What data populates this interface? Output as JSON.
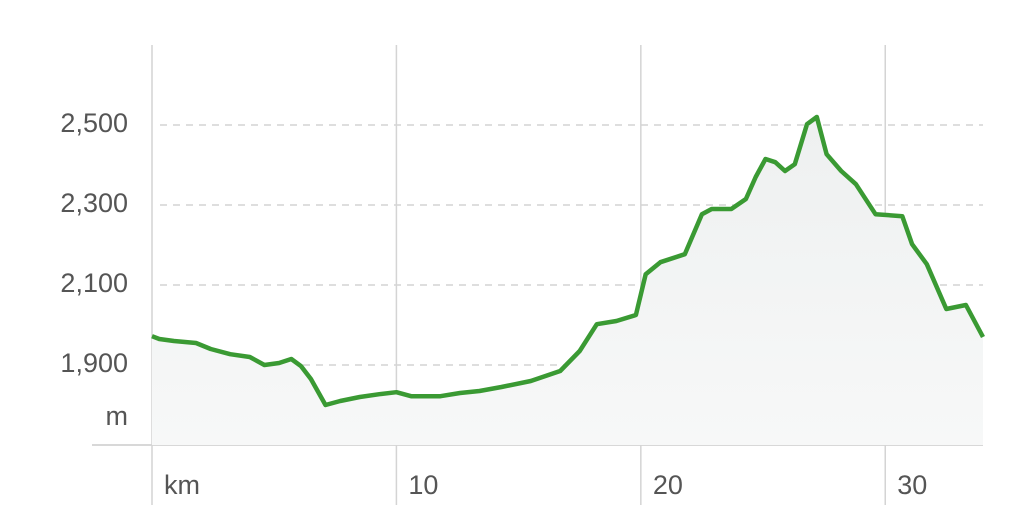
{
  "chart_data": {
    "type": "area-line",
    "ylabel": "m",
    "x": [
      0,
      0.3,
      0.9,
      1.8,
      2.4,
      3.2,
      4.0,
      4.6,
      5.2,
      5.7,
      6.1,
      6.5,
      7.1,
      7.7,
      8.5,
      9.3,
      10,
      10.6,
      11.8,
      12.6,
      13.4,
      14.3,
      15.5,
      16.7,
      17.5,
      18.2,
      19.0,
      19.8,
      20.2,
      20.8,
      21.8,
      22.5,
      22.9,
      23.7,
      24.3,
      24.7,
      25.1,
      25.5,
      25.9,
      26.3,
      26.8,
      27.2,
      27.6,
      28.2,
      28.8,
      29.6,
      30.7,
      31.1,
      31.7,
      32.5,
      33.3,
      34.0
    ],
    "series": [
      {
        "color": "#3a9a33",
        "values": [
          1972,
          1965,
          1960,
          1955,
          1940,
          1927,
          1920,
          1900,
          1905,
          1915,
          1897,
          1865,
          1800,
          1810,
          1820,
          1827,
          1832,
          1822,
          1822,
          1830,
          1835,
          1845,
          1860,
          1885,
          1935,
          2002,
          2010,
          2025,
          2127,
          2157,
          2177,
          2277,
          2290,
          2290,
          2315,
          2370,
          2415,
          2407,
          2385,
          2402,
          2502,
          2520,
          2427,
          2385,
          2352,
          2277,
          2272,
          2202,
          2152,
          2040,
          2050,
          1970
        ]
      }
    ],
    "xlim": [
      0,
      34
    ],
    "xticks": [
      {
        "value": 0,
        "label": "km"
      },
      10,
      20,
      30
    ],
    "ylim": [
      1700,
      2700
    ],
    "yticks": [
      {
        "value": 1900,
        "label": "1,900"
      },
      {
        "value": 2100,
        "label": "2,100"
      },
      {
        "value": 2300,
        "label": "2,300"
      },
      {
        "value": 2500,
        "label": "2,500"
      }
    ],
    "grid": true
  }
}
